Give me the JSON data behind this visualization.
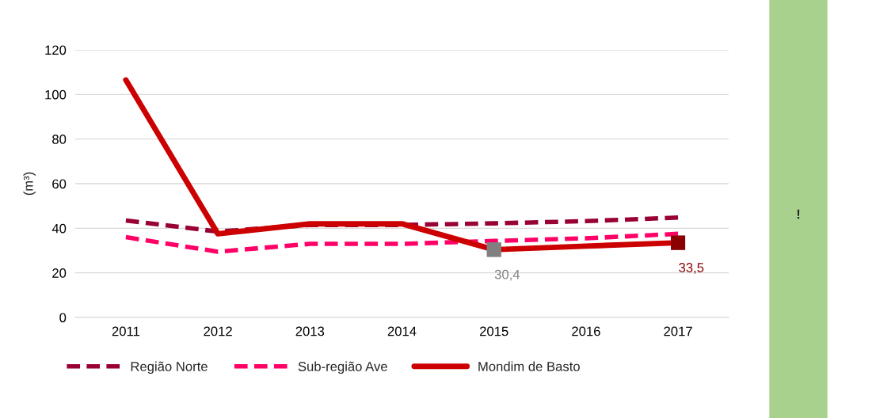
{
  "chart_data": {
    "type": "line",
    "ylabel": "(m³)",
    "categories": [
      "2011",
      "2012",
      "2013",
      "2014",
      "2015",
      "2016",
      "2017"
    ],
    "series": [
      {
        "name": "Região Norte",
        "color": "#990033",
        "line_style": "dashed",
        "values": [
          43.5,
          38.5,
          41.5,
          41.5,
          42.2,
          43.2,
          44.8
        ]
      },
      {
        "name": "Sub-região Ave",
        "color": "#ff0066",
        "line_style": "dashed",
        "values": [
          36,
          29.5,
          33,
          33,
          34.3,
          35.5,
          37.5
        ]
      },
      {
        "name": "Mondim de Basto",
        "color": "#cc0000",
        "line_style": "solid",
        "colors": [
          null,
          null,
          null,
          null,
          "#808080",
          null,
          "#8b0000"
        ],
        "values": [
          106.5,
          37.5,
          42,
          42,
          30.4,
          32,
          33.5
        ],
        "value_labels": [
          null,
          null,
          null,
          null,
          "30,4",
          null,
          "33,5"
        ]
      }
    ],
    "ylim": [
      0,
      120
    ],
    "yticks": [
      0,
      20,
      40,
      60,
      80,
      100,
      120
    ],
    "grid": "y",
    "legend": "bottom",
    "annotations": [
      "!"
    ]
  }
}
